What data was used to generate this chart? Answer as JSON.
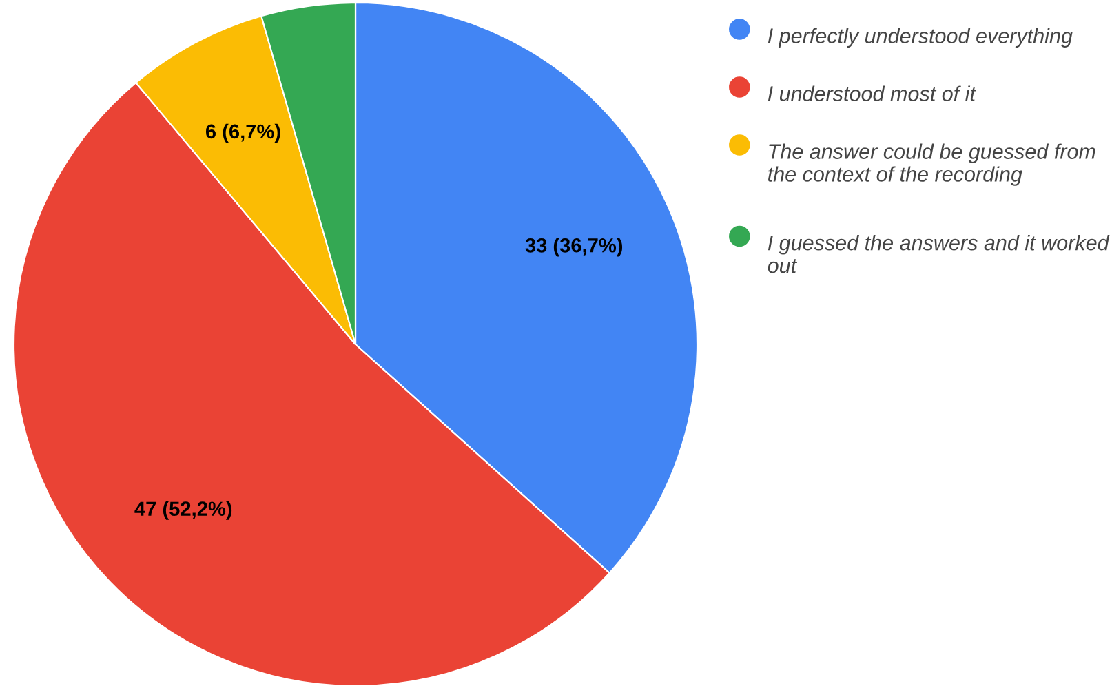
{
  "chart_data": {
    "type": "pie",
    "categories": [
      "I perfectly understood everything",
      "I understood most of it",
      "The answer could be guessed from the context of the recording",
      "I guessed the answers and it worked out"
    ],
    "values": [
      33,
      47,
      6,
      4
    ],
    "colors": [
      "#4285f4",
      "#ea4335",
      "#fbbc04",
      "#34a853"
    ],
    "value_labels": [
      "33 (36,7%)",
      "47 (52,2%)",
      "6 (6,7%)",
      null
    ],
    "legend": "top right"
  }
}
